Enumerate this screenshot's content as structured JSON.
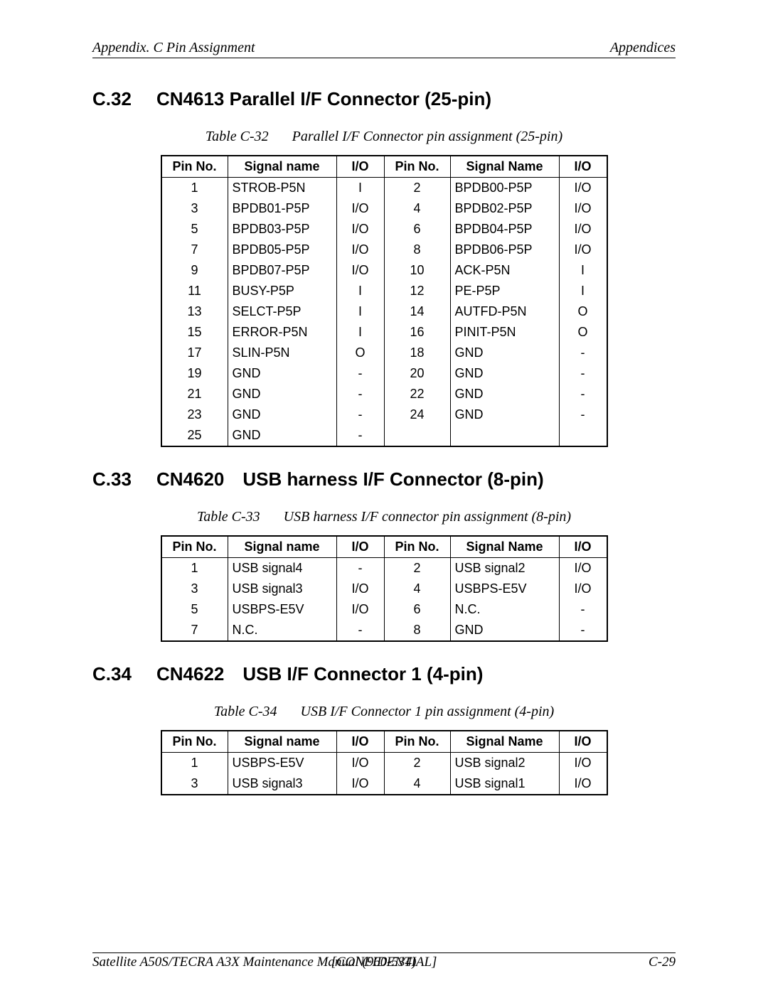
{
  "header": {
    "left": "Appendix. C  Pin Assignment",
    "right": "Appendices"
  },
  "footer": {
    "left": "Satellite A50S/TECRA A3X  Maintenance Manual (960-534)",
    "mid": "[CONFIDENTIAL]",
    "right": "C-29"
  },
  "s1": {
    "num": "C.32",
    "title": "CN4613  Parallel I/F Connector (25-pin)",
    "capnum": "Table C-32",
    "caption": "Parallel I/F Connector pin assignment (25-pin)",
    "headers": [
      "Pin No.",
      "Signal name",
      "I/O",
      "Pin No.",
      "Signal Name",
      "I/O"
    ],
    "rows": [
      [
        "1",
        "STROB-P5N",
        "I",
        "2",
        "BPDB00-P5P",
        "I/O"
      ],
      [
        "3",
        "BPDB01-P5P",
        "I/O",
        "4",
        "BPDB02-P5P",
        "I/O"
      ],
      [
        "5",
        "BPDB03-P5P",
        "I/O",
        "6",
        "BPDB04-P5P",
        "I/O"
      ],
      [
        "7",
        "BPDB05-P5P",
        "I/O",
        "8",
        "BPDB06-P5P",
        "I/O"
      ],
      [
        "9",
        "BPDB07-P5P",
        "I/O",
        "10",
        "ACK-P5N",
        "I"
      ],
      [
        "11",
        "BUSY-P5P",
        "I",
        "12",
        "PE-P5P",
        "I"
      ],
      [
        "13",
        "SELCT-P5P",
        "I",
        "14",
        "AUTFD-P5N",
        "O"
      ],
      [
        "15",
        "ERROR-P5N",
        "I",
        "16",
        "PINIT-P5N",
        "O"
      ],
      [
        "17",
        "SLIN-P5N",
        "O",
        "18",
        "GND",
        "-"
      ],
      [
        "19",
        "GND",
        "-",
        "20",
        "GND",
        "-"
      ],
      [
        "21",
        "GND",
        "-",
        "22",
        "GND",
        "-"
      ],
      [
        "23",
        "GND",
        "-",
        "24",
        "GND",
        "-"
      ],
      [
        "25",
        "GND",
        "-",
        "",
        "",
        ""
      ]
    ]
  },
  "s2": {
    "num": "C.33",
    "title": "CN4620 USB harness I/F Connector (8-pin)",
    "capnum": "Table C-33",
    "caption": "USB harness I/F connector pin assignment (8-pin)",
    "headers": [
      "Pin No.",
      "Signal name",
      "I/O",
      "Pin No.",
      "Signal Name",
      "I/O"
    ],
    "rows": [
      [
        "1",
        "USB signal4",
        "-",
        "2",
        "USB signal2",
        "I/O"
      ],
      [
        "3",
        "USB signal3",
        "I/O",
        "4",
        "USBPS-E5V",
        "I/O"
      ],
      [
        "5",
        "USBPS-E5V",
        "I/O",
        "6",
        "N.C.",
        "-"
      ],
      [
        "7",
        "N.C.",
        "-",
        "8",
        "GND",
        "-"
      ]
    ]
  },
  "s3": {
    "num": "C.34",
    "title": "CN4622 USB I/F Connector 1 (4-pin)",
    "capnum": "Table C-34",
    "caption": "USB I/F Connector 1 pin assignment (4-pin)",
    "headers": [
      "Pin No.",
      "Signal name",
      "I/O",
      "Pin No.",
      "Signal Name",
      "I/O"
    ],
    "rows": [
      [
        "1",
        "USBPS-E5V",
        "I/O",
        "2",
        "USB signal2",
        "I/O"
      ],
      [
        "3",
        "USB signal3",
        "I/O",
        "4",
        "USB signal1",
        "I/O"
      ]
    ]
  }
}
